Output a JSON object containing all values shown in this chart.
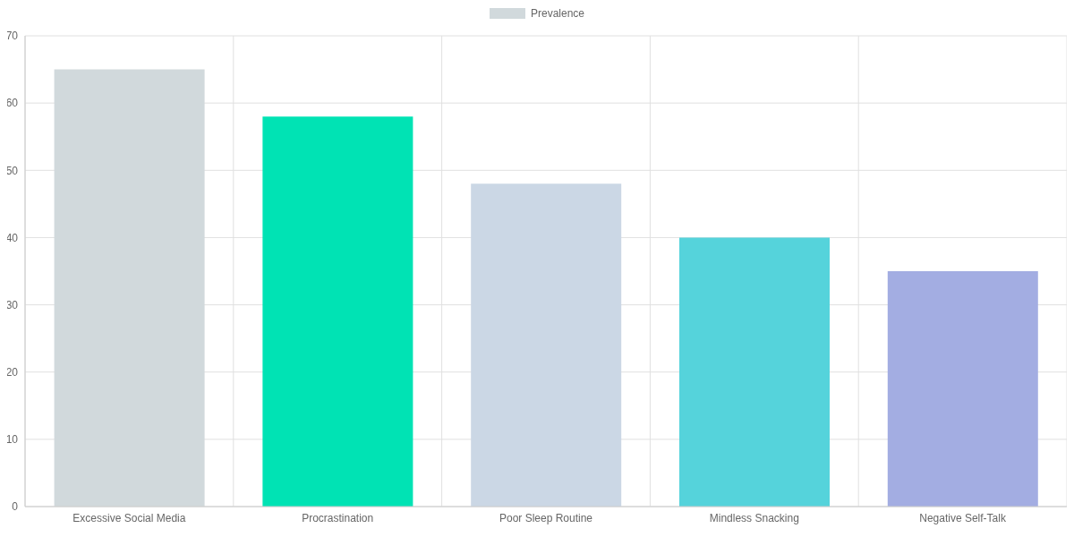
{
  "chart_data": {
    "type": "bar",
    "categories": [
      "Excessive Social Media",
      "Procrastination",
      "Poor Sleep Routine",
      "Mindless Snacking",
      "Negative Self-Talk"
    ],
    "series": [
      {
        "name": "Prevalence",
        "color": "#d1d9dc",
        "colors": [
          "#d1d9dc",
          "#00e3b4",
          "#cbd7e5",
          "#55d3db",
          "#a3ade2"
        ],
        "values": [
          65,
          58,
          48,
          40,
          35
        ]
      }
    ],
    "ylim": [
      0,
      70
    ],
    "yticks": [
      0,
      10,
      20,
      30,
      40,
      50,
      60,
      70
    ],
    "grid": true,
    "legend": "top"
  }
}
